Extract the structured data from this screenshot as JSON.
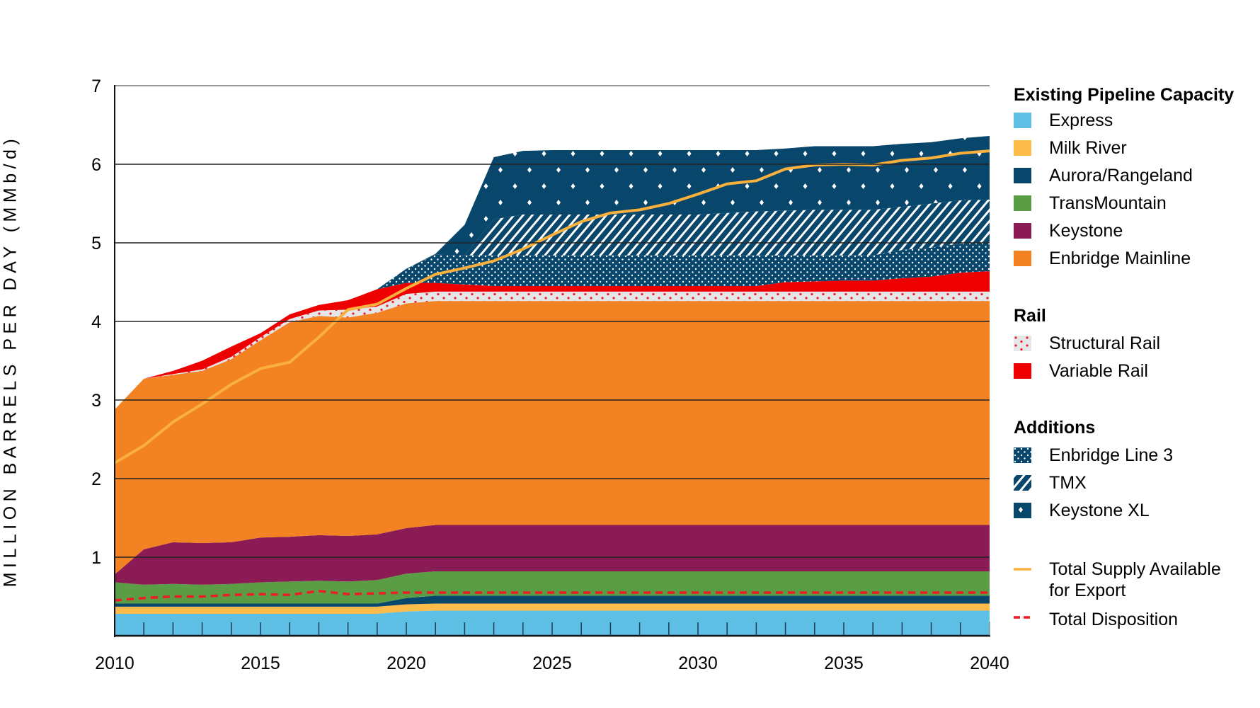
{
  "chart_data": {
    "type": "area",
    "stacked": true,
    "ylabel": "MILLION BARRELS PER DAY (MMb/d)",
    "xlabel": "",
    "xlim": [
      2010,
      2040
    ],
    "ylim": [
      0,
      7
    ],
    "x_ticks": [
      2010,
      2015,
      2020,
      2025,
      2030,
      2035,
      2040
    ],
    "y_ticks": [
      1,
      2,
      3,
      4,
      5,
      6,
      7
    ],
    "grid": "horizontal",
    "legend_position": "right",
    "x": [
      2010,
      2011,
      2012,
      2013,
      2014,
      2015,
      2016,
      2017,
      2018,
      2019,
      2020,
      2021,
      2022,
      2023,
      2024,
      2025,
      2026,
      2027,
      2028,
      2029,
      2030,
      2031,
      2032,
      2033,
      2034,
      2035,
      2036,
      2037,
      2038,
      2039,
      2040
    ],
    "legend_groups": [
      {
        "title": "Existing Pipeline Capacity",
        "series_names": [
          "Express",
          "Milk River",
          "Aurora/Rangeland",
          "TransMountain",
          "Keystone",
          "Enbridge Mainline"
        ]
      },
      {
        "title": "Rail",
        "series_names": [
          "Structural Rail",
          "Variable Rail"
        ]
      },
      {
        "title": "Additions",
        "series_names": [
          "Enbridge Line 3",
          "TMX",
          "Keystone XL"
        ]
      }
    ],
    "series": [
      {
        "name": "Express",
        "color": "#5FC0E6",
        "fill": "solid",
        "values": [
          0.28,
          0.28,
          0.28,
          0.28,
          0.28,
          0.28,
          0.28,
          0.28,
          0.28,
          0.28,
          0.31,
          0.32,
          0.32,
          0.32,
          0.32,
          0.32,
          0.32,
          0.32,
          0.32,
          0.32,
          0.32,
          0.32,
          0.32,
          0.32,
          0.32,
          0.32,
          0.32,
          0.32,
          0.32,
          0.32,
          0.32
        ]
      },
      {
        "name": "Milk River",
        "color": "#FDBB4A",
        "fill": "solid",
        "values": [
          0.09,
          0.09,
          0.09,
          0.09,
          0.09,
          0.09,
          0.09,
          0.09,
          0.09,
          0.09,
          0.09,
          0.09,
          0.09,
          0.09,
          0.09,
          0.09,
          0.09,
          0.09,
          0.09,
          0.09,
          0.09,
          0.09,
          0.09,
          0.09,
          0.09,
          0.09,
          0.09,
          0.09,
          0.09,
          0.09,
          0.09
        ]
      },
      {
        "name": "Aurora/Rangeland",
        "color": "#08466B",
        "fill": "solid",
        "values": [
          0.04,
          0.04,
          0.04,
          0.04,
          0.04,
          0.04,
          0.04,
          0.04,
          0.04,
          0.04,
          0.08,
          0.1,
          0.1,
          0.1,
          0.1,
          0.1,
          0.1,
          0.1,
          0.1,
          0.1,
          0.1,
          0.1,
          0.1,
          0.1,
          0.1,
          0.1,
          0.1,
          0.1,
          0.1,
          0.1,
          0.1
        ]
      },
      {
        "name": "TransMountain",
        "color": "#5A9D45",
        "fill": "solid",
        "values": [
          0.27,
          0.24,
          0.25,
          0.24,
          0.25,
          0.27,
          0.28,
          0.29,
          0.28,
          0.3,
          0.31,
          0.31,
          0.31,
          0.31,
          0.31,
          0.31,
          0.31,
          0.31,
          0.31,
          0.31,
          0.31,
          0.31,
          0.31,
          0.31,
          0.31,
          0.31,
          0.31,
          0.31,
          0.31,
          0.31,
          0.31
        ]
      },
      {
        "name": "Keystone",
        "color": "#8A1B55",
        "fill": "solid",
        "values": [
          0.1,
          0.45,
          0.53,
          0.53,
          0.53,
          0.57,
          0.57,
          0.58,
          0.58,
          0.58,
          0.58,
          0.59,
          0.59,
          0.59,
          0.59,
          0.59,
          0.59,
          0.59,
          0.59,
          0.59,
          0.59,
          0.59,
          0.59,
          0.59,
          0.59,
          0.59,
          0.59,
          0.59,
          0.59,
          0.59,
          0.59
        ]
      },
      {
        "name": "Enbridge Mainline",
        "color": "#F38222",
        "fill": "solid",
        "values": [
          2.1,
          2.17,
          2.13,
          2.19,
          2.33,
          2.51,
          2.73,
          2.79,
          2.78,
          2.82,
          2.86,
          2.85,
          2.85,
          2.85,
          2.85,
          2.85,
          2.85,
          2.85,
          2.85,
          2.85,
          2.85,
          2.85,
          2.85,
          2.85,
          2.85,
          2.85,
          2.85,
          2.85,
          2.85,
          2.85,
          2.85
        ]
      },
      {
        "name": "Structural Rail",
        "color": "#E5E6E8",
        "accent": "#EE1C25",
        "fill": "red-dots",
        "values": [
          0,
          0,
          0.01,
          0.02,
          0.03,
          0.04,
          0.04,
          0.07,
          0.1,
          0.08,
          0.12,
          0.12,
          0.12,
          0.12,
          0.12,
          0.12,
          0.12,
          0.12,
          0.12,
          0.12,
          0.12,
          0.12,
          0.12,
          0.12,
          0.12,
          0.12,
          0.12,
          0.12,
          0.12,
          0.12,
          0.12
        ]
      },
      {
        "name": "Variable Rail",
        "color": "#EE0000",
        "fill": "solid",
        "values": [
          0,
          0,
          0.04,
          0.11,
          0.13,
          0.05,
          0.06,
          0.07,
          0.12,
          0.22,
          0.14,
          0.11,
          0.09,
          0.07,
          0.07,
          0.07,
          0.07,
          0.07,
          0.07,
          0.07,
          0.07,
          0.07,
          0.07,
          0.12,
          0.13,
          0.14,
          0.14,
          0.17,
          0.19,
          0.24,
          0.26
        ]
      },
      {
        "name": "Enbridge Line 3",
        "color": "#08466B",
        "fill": "dense-dots",
        "values": [
          0,
          0,
          0,
          0,
          0,
          0,
          0,
          0,
          0,
          0,
          0.18,
          0.36,
          0.37,
          0.39,
          0.39,
          0.39,
          0.39,
          0.39,
          0.39,
          0.39,
          0.39,
          0.39,
          0.39,
          0.34,
          0.33,
          0.32,
          0.32,
          0.36,
          0.37,
          0.37,
          0.37
        ]
      },
      {
        "name": "TMX",
        "color": "#08466B",
        "fill": "hatch",
        "values": [
          0,
          0,
          0,
          0,
          0,
          0,
          0,
          0,
          0,
          0,
          0,
          0,
          0,
          0.46,
          0.52,
          0.52,
          0.52,
          0.52,
          0.52,
          0.52,
          0.52,
          0.54,
          0.56,
          0.57,
          0.58,
          0.58,
          0.58,
          0.55,
          0.56,
          0.55,
          0.54
        ]
      },
      {
        "name": "Keystone XL",
        "color": "#08466B",
        "fill": "sparse-diamonds",
        "values": [
          0,
          0,
          0,
          0,
          0,
          0,
          0,
          0,
          0,
          0,
          0,
          0.01,
          0.39,
          0.79,
          0.81,
          0.82,
          0.82,
          0.82,
          0.82,
          0.82,
          0.82,
          0.8,
          0.78,
          0.79,
          0.81,
          0.81,
          0.81,
          0.8,
          0.78,
          0.79,
          0.81
        ]
      }
    ],
    "lines": [
      {
        "name": "Total Supply Available for Export",
        "label_lines": [
          "Total Supply Available",
          "for Export"
        ],
        "color": "#F9B03C",
        "style": "solid",
        "values": [
          2.2,
          2.42,
          2.72,
          2.95,
          3.2,
          3.4,
          3.48,
          3.8,
          4.15,
          4.22,
          4.42,
          4.6,
          4.68,
          4.77,
          4.92,
          5.1,
          5.27,
          5.38,
          5.42,
          5.5,
          5.62,
          5.75,
          5.79,
          5.94,
          5.99,
          6.0,
          5.99,
          6.05,
          6.08,
          6.14,
          6.17
        ]
      },
      {
        "name": "Total Disposition",
        "color": "#EE1C25",
        "style": "dashed",
        "values": [
          0.45,
          0.48,
          0.5,
          0.5,
          0.52,
          0.53,
          0.52,
          0.57,
          0.53,
          0.54,
          0.55,
          0.55,
          0.55,
          0.55,
          0.55,
          0.55,
          0.55,
          0.55,
          0.55,
          0.55,
          0.55,
          0.55,
          0.55,
          0.55,
          0.55,
          0.55,
          0.55,
          0.55,
          0.55,
          0.55,
          0.55
        ]
      }
    ]
  }
}
